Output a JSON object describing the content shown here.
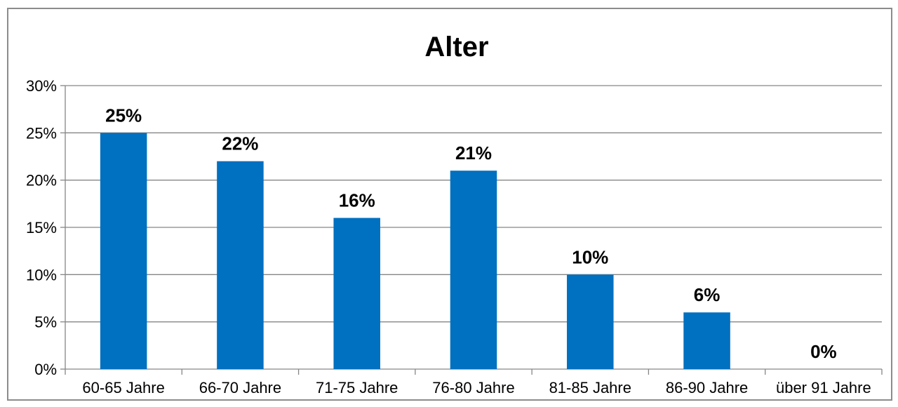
{
  "chart_data": {
    "type": "bar",
    "title": "Alter",
    "xlabel": "",
    "ylabel": "",
    "categories": [
      "60-65 Jahre",
      "66-70 Jahre",
      "71-75 Jahre",
      "76-80 Jahre",
      "81-85 Jahre",
      "86-90 Jahre",
      "über 91 Jahre"
    ],
    "values": [
      25,
      22,
      16,
      21,
      10,
      6,
      0
    ],
    "data_labels": [
      "25%",
      "22%",
      "16%",
      "21%",
      "10%",
      "6%",
      "0%"
    ],
    "ylim": [
      0,
      30
    ],
    "yticks": [
      0,
      5,
      10,
      15,
      20,
      25,
      30
    ],
    "ytick_labels": [
      "0%",
      "5%",
      "10%",
      "15%",
      "20%",
      "25%",
      "30%"
    ],
    "grid": true,
    "legend": "none",
    "bar_color": "#0070C0",
    "grid_color": "#868686",
    "border_color": "#8c8c8c"
  }
}
